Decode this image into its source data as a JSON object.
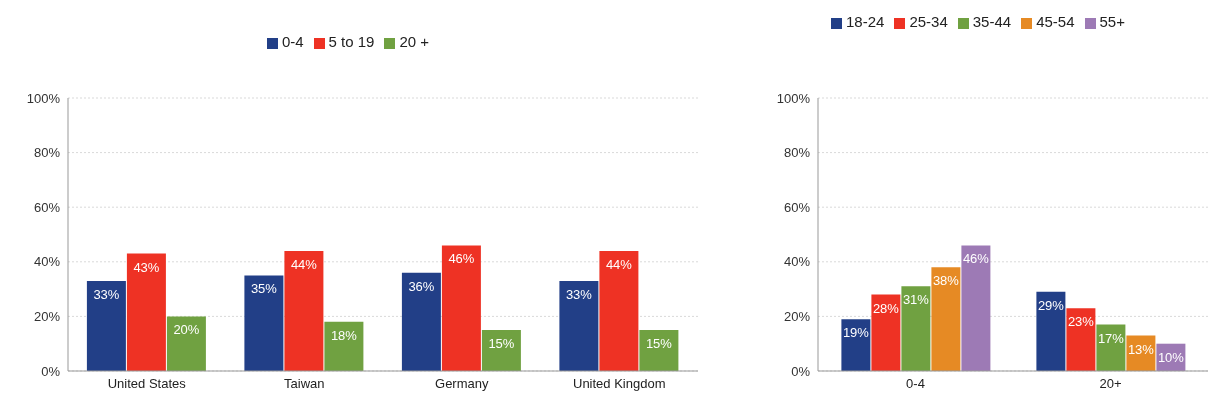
{
  "chart_data": [
    {
      "type": "bar",
      "categories": [
        "United States",
        "Taiwan",
        "Germany",
        "United Kingdom"
      ],
      "series": [
        {
          "name": "0-4",
          "color": "#223f87",
          "values": [
            33,
            35,
            36,
            33
          ],
          "value_labels": [
            "33%",
            "35%",
            "36%",
            "33%"
          ]
        },
        {
          "name": "5 to 19",
          "color": "#ee3224",
          "values": [
            43,
            44,
            46,
            44
          ],
          "value_labels": [
            "43%",
            "44%",
            "46%",
            "44%"
          ]
        },
        {
          "name": "20 +",
          "color": "#70a141",
          "values": [
            20,
            18,
            15,
            15
          ],
          "value_labels": [
            "20%",
            "18%",
            "15%",
            "15%"
          ]
        }
      ],
      "ylim": [
        0,
        100
      ],
      "yticks": [
        {
          "value": 0,
          "label": "0%"
        },
        {
          "value": 20,
          "label": "20%"
        },
        {
          "value": 40,
          "label": "40%"
        },
        {
          "value": 60,
          "label": "60%"
        },
        {
          "value": 80,
          "label": "80%"
        },
        {
          "value": 100,
          "label": "100%"
        }
      ],
      "grid": "y",
      "legend": "top"
    },
    {
      "type": "bar",
      "categories": [
        "0-4",
        "20+"
      ],
      "series": [
        {
          "name": "18-24",
          "color": "#223f87",
          "values": [
            19,
            29
          ],
          "value_labels": [
            "19%",
            "29%"
          ]
        },
        {
          "name": "25-34",
          "color": "#ee3224",
          "values": [
            28,
            23
          ],
          "value_labels": [
            "28%",
            "23%"
          ]
        },
        {
          "name": "35-44",
          "color": "#70a141",
          "values": [
            31,
            17
          ],
          "value_labels": [
            "31%",
            "17%"
          ]
        },
        {
          "name": "45-54",
          "color": "#e68a24",
          "values": [
            38,
            13
          ],
          "value_labels": [
            "38%",
            "13%"
          ]
        },
        {
          "name": "55+",
          "color": "#9d7ab5",
          "values": [
            46,
            10
          ],
          "value_labels": [
            "46%",
            "10%"
          ]
        }
      ],
      "ylim": [
        0,
        100
      ],
      "yticks": [
        {
          "value": 0,
          "label": "0%"
        },
        {
          "value": 20,
          "label": "20%"
        },
        {
          "value": 40,
          "label": "40%"
        },
        {
          "value": 60,
          "label": "60%"
        },
        {
          "value": 80,
          "label": "80%"
        },
        {
          "value": 100,
          "label": "100%"
        }
      ],
      "grid": "y",
      "legend": "top"
    }
  ]
}
